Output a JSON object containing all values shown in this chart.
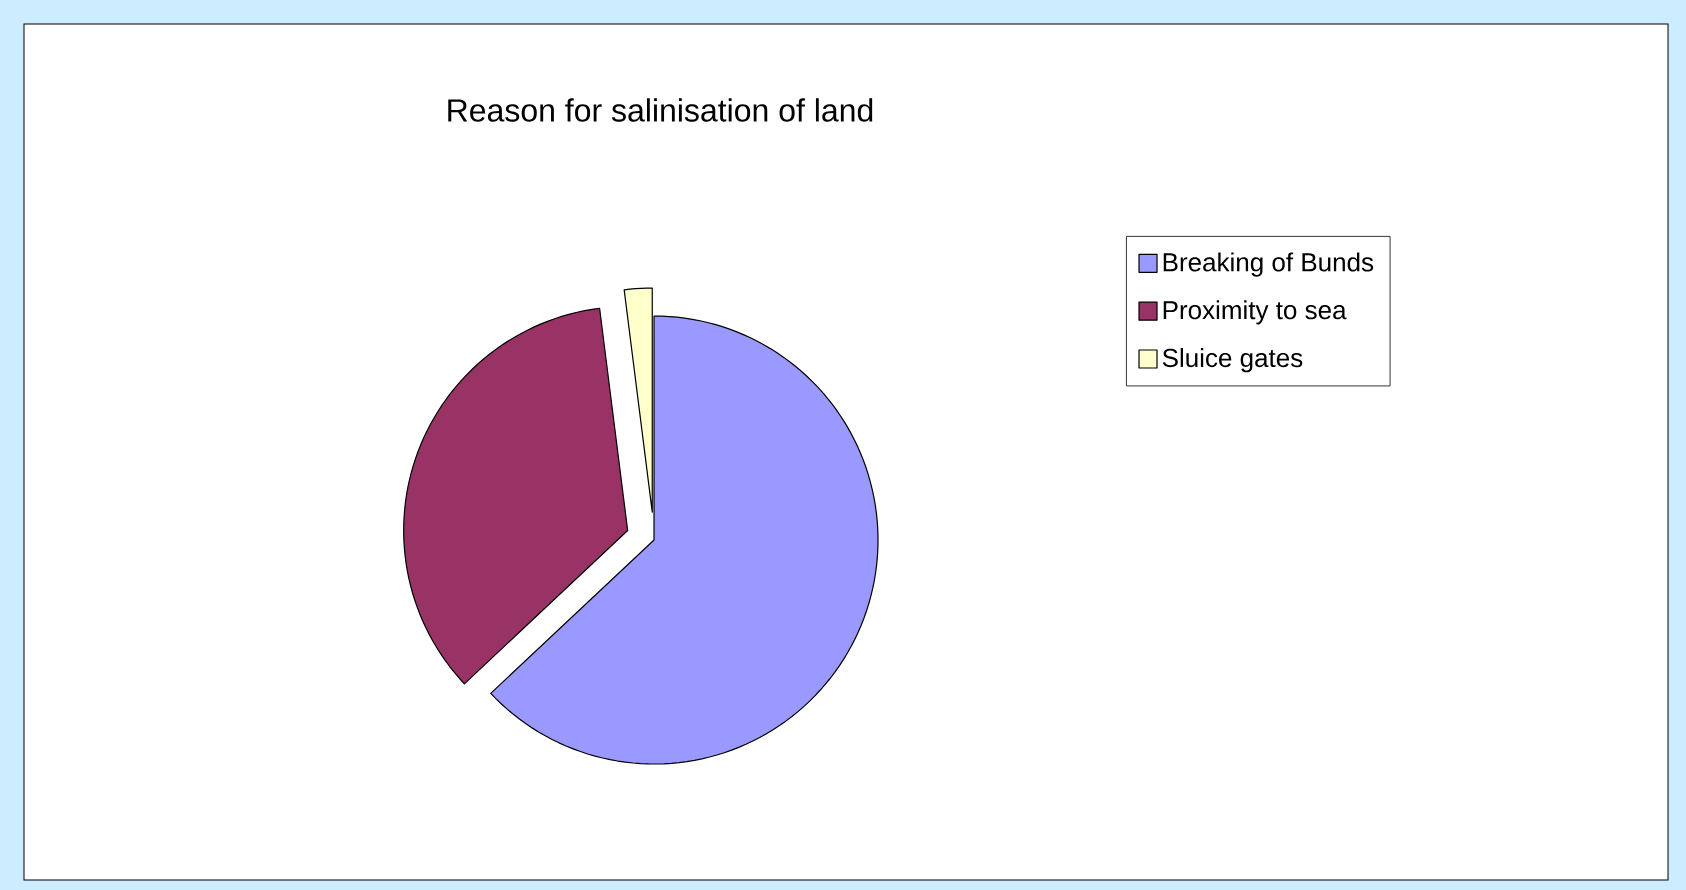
{
  "chart_data": {
    "type": "pie",
    "title": "Reason for salinisation of land",
    "categories": [
      "Breaking of Bunds",
      "Proximity to sea",
      "Sluice gates"
    ],
    "values": [
      63,
      35,
      2
    ],
    "colors": [
      "#9999ff",
      "#993366",
      "#ffffcc"
    ],
    "legend": "right"
  }
}
